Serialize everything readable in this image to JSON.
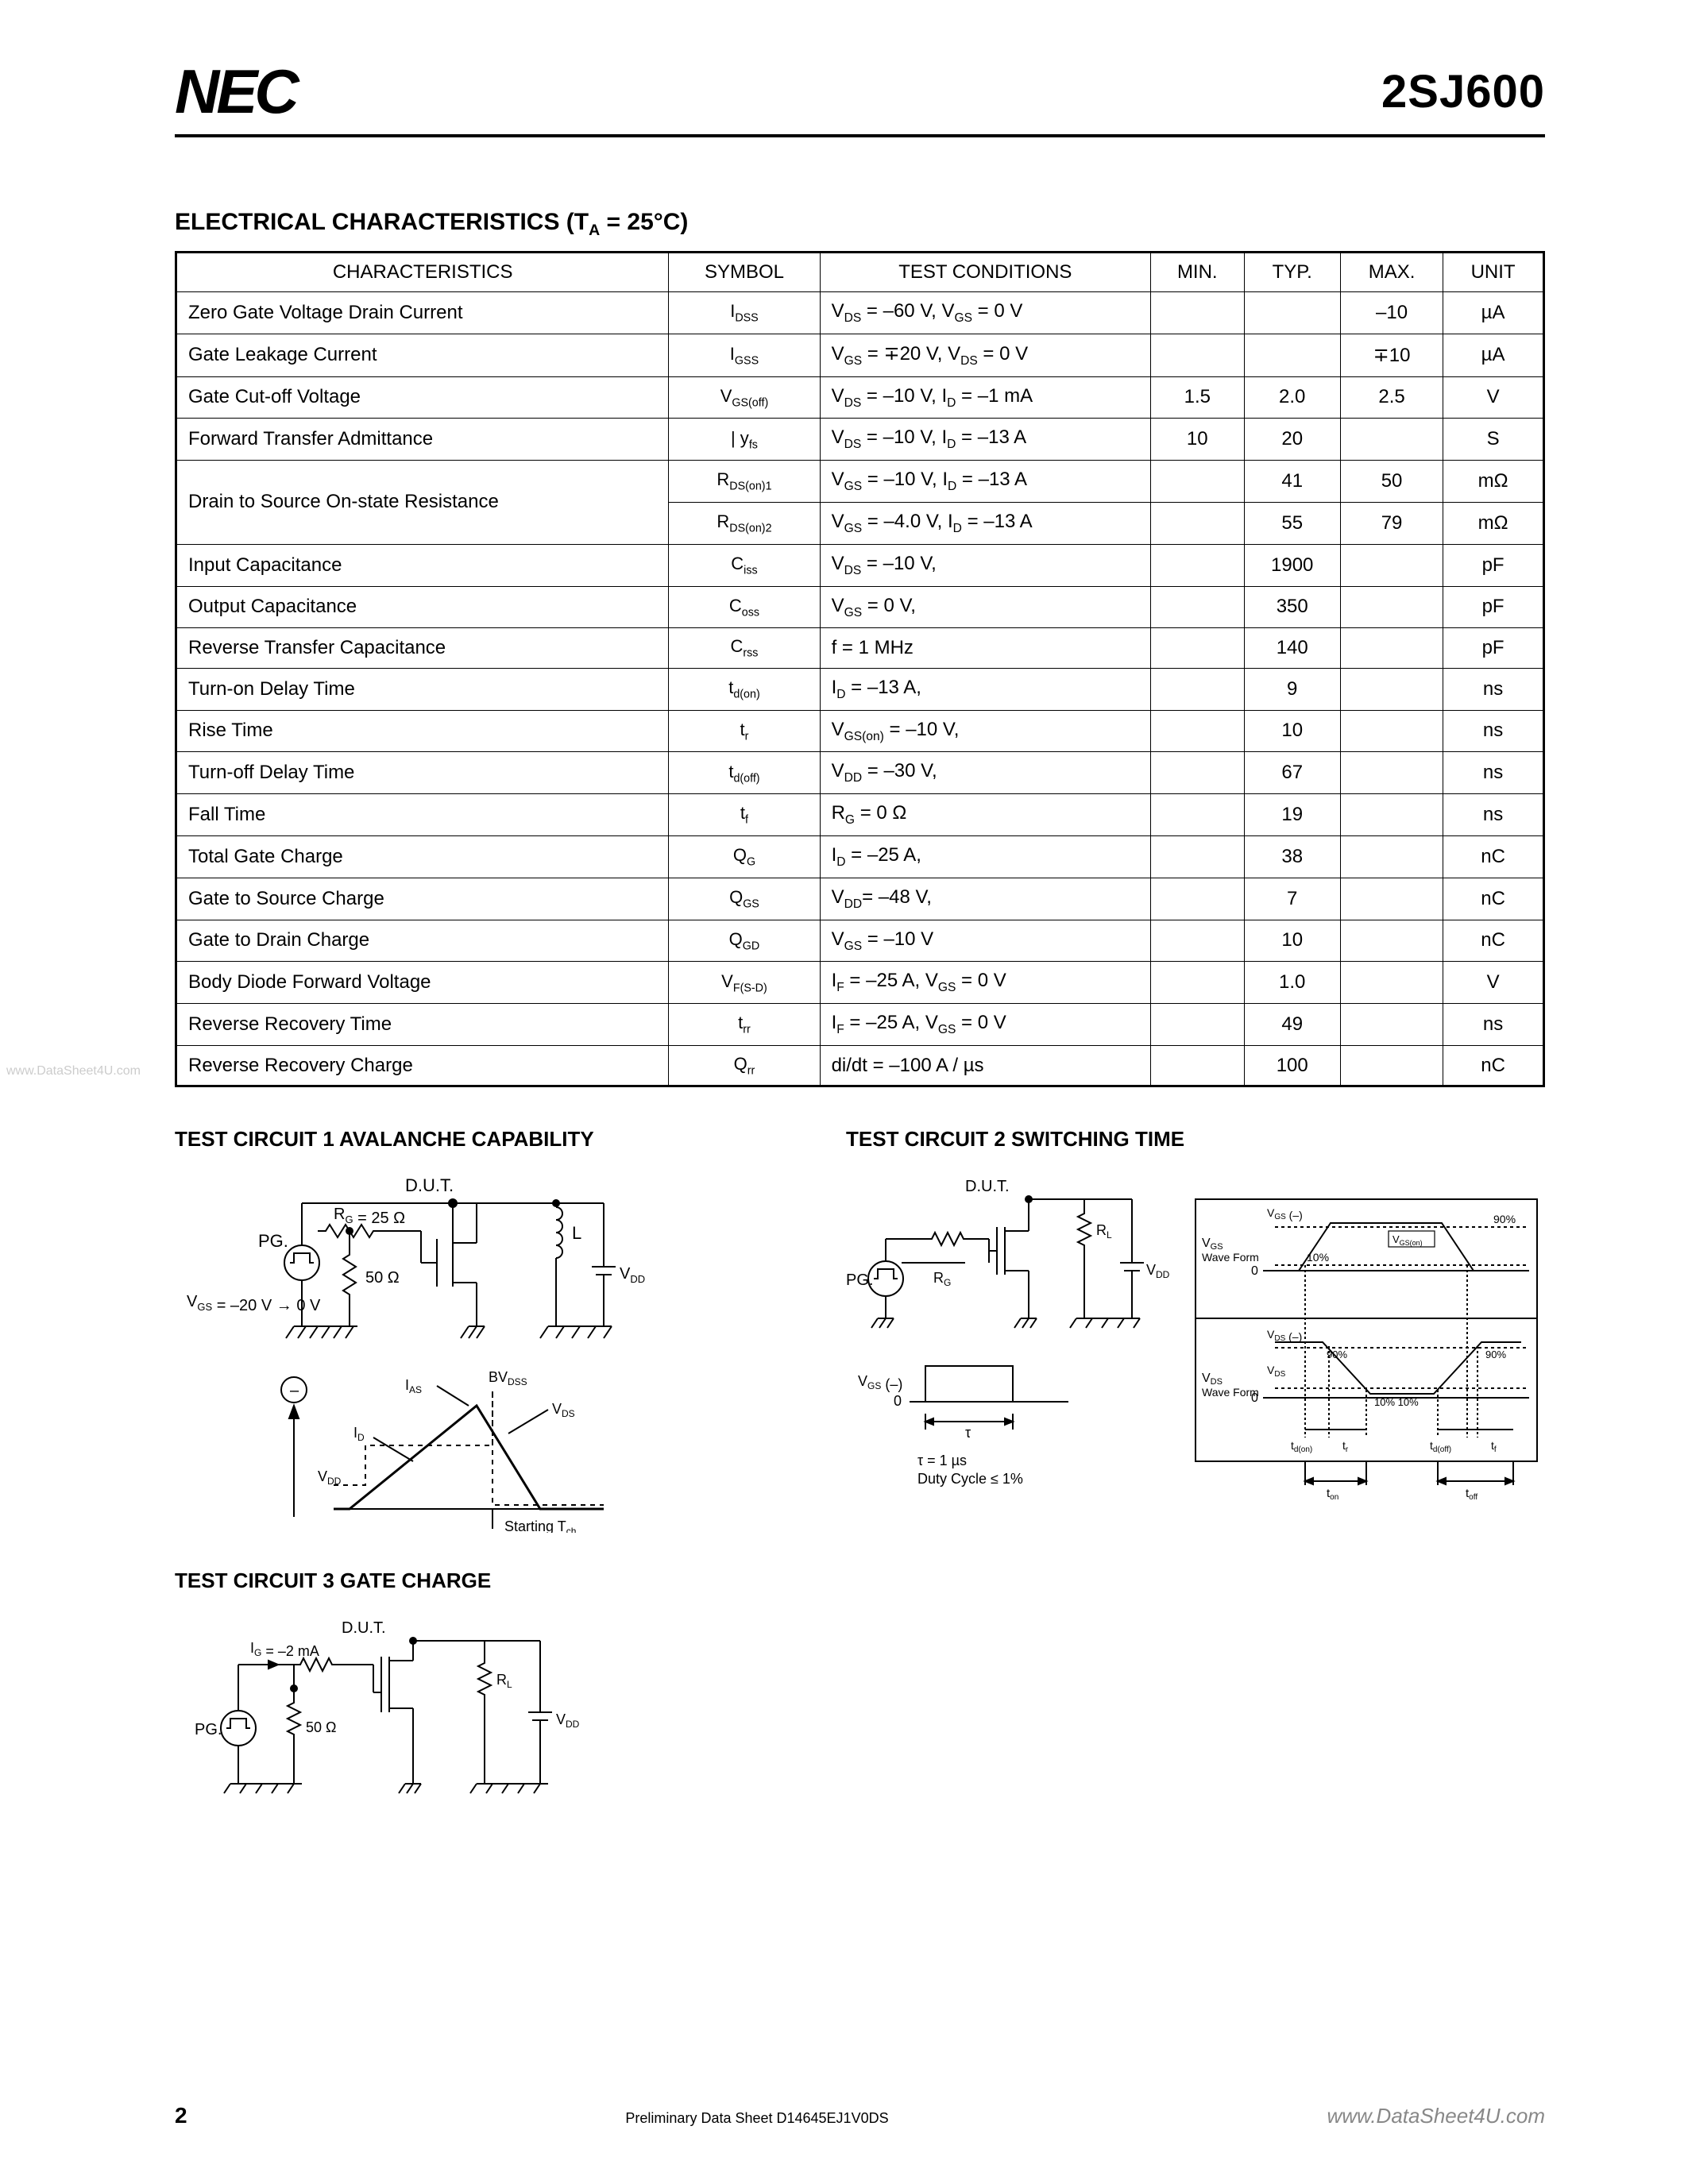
{
  "header": {
    "logo": "NEC",
    "part_number": "2SJ600"
  },
  "section": {
    "title_prefix": "ELECTRICAL CHARACTERISTICS (T",
    "title_sub": "A",
    "title_suffix": " = 25°C)"
  },
  "table": {
    "headers": [
      "CHARACTERISTICS",
      "SYMBOL",
      "TEST CONDITIONS",
      "MIN.",
      "TYP.",
      "MAX.",
      "UNIT"
    ],
    "rows": [
      {
        "char": "Zero Gate Voltage Drain Current",
        "sym": "I",
        "sub": "DSS",
        "cond": "V_DS = –60 V, V_GS = 0 V",
        "min": "",
        "typ": "",
        "max": "–10",
        "unit": "µA"
      },
      {
        "char": "Gate Leakage Current",
        "sym": "I",
        "sub": "GSS",
        "cond": "V_GS = ∓20 V, V_DS = 0 V",
        "min": "",
        "typ": "",
        "max": "∓10",
        "unit": "µA"
      },
      {
        "char": "Gate Cut-off Voltage",
        "sym": "V",
        "sub": "GS(off)",
        "cond": "V_DS = –10 V, I_D = –1 mA",
        "min": "1.5",
        "typ": "2.0",
        "max": "2.5",
        "unit": "V"
      },
      {
        "char": "Forward Transfer Admittance",
        "sym": "| y",
        "sub": "fs",
        " symsuf": " |",
        "cond": "V_DS = –10 V, I_D = –13 A",
        "min": "10",
        "typ": "20",
        "max": "",
        "unit": "S"
      },
      {
        "char": "Drain to Source On-state Resistance",
        "sym": "R",
        "sub": "DS(on)1",
        "cond": "V_GS = –10 V, I_D = –13 A",
        "min": "",
        "typ": "41",
        "max": "50",
        "unit": "mΩ"
      },
      {
        "char": "",
        "sym": "R",
        "sub": "DS(on)2",
        "cond": "V_GS = –4.0 V, I_D = –13 A",
        "min": "",
        "typ": "55",
        "max": "79",
        "unit": "mΩ"
      },
      {
        "char": "Input Capacitance",
        "sym": "C",
        "sub": "iss",
        "cond": "V_DS = –10 V,",
        "min": "",
        "typ": "1900",
        "max": "",
        "unit": "pF"
      },
      {
        "char": "Output Capacitance",
        "sym": "C",
        "sub": "oss",
        "cond": "V_GS = 0 V,",
        "min": "",
        "typ": "350",
        "max": "",
        "unit": "pF"
      },
      {
        "char": "Reverse Transfer Capacitance",
        "sym": "C",
        "sub": "rss",
        "cond": "f = 1 MHz",
        "min": "",
        "typ": "140",
        "max": "",
        "unit": "pF"
      },
      {
        "char": "Turn-on Delay Time",
        "sym": "t",
        "sub": "d(on)",
        "cond": "I_D = –13 A,",
        "min": "",
        "typ": "9",
        "max": "",
        "unit": "ns"
      },
      {
        "char": "Rise Time",
        "sym": "t",
        "sub": "r",
        "cond": "V_GS(on) = –10 V,",
        "min": "",
        "typ": "10",
        "max": "",
        "unit": "ns"
      },
      {
        "char": "Turn-off Delay Time",
        "sym": "t",
        "sub": "d(off)",
        "cond": "V_DD = –30 V,",
        "min": "",
        "typ": "67",
        "max": "",
        "unit": "ns"
      },
      {
        "char": "Fall Time",
        "sym": "t",
        "sub": "f",
        "cond": "R_G = 0 Ω",
        "min": "",
        "typ": "19",
        "max": "",
        "unit": "ns"
      },
      {
        "char": "Total Gate Charge",
        "sym": "Q",
        "sub": "G",
        "cond": "I_D = –25 A,",
        "min": "",
        "typ": "38",
        "max": "",
        "unit": "nC"
      },
      {
        "char": "Gate to Source Charge",
        "sym": "Q",
        "sub": "GS",
        "cond": "V_DD= –48 V,",
        "min": "",
        "typ": "7",
        "max": "",
        "unit": "nC"
      },
      {
        "char": "Gate to Drain Charge",
        "sym": "Q",
        "sub": "GD",
        "cond": "V_GS = –10 V",
        "min": "",
        "typ": "10",
        "max": "",
        "unit": "nC"
      },
      {
        "char": "Body Diode Forward Voltage",
        "sym": "V",
        "sub": "F(S-D)",
        "cond": "I_F = –25 A, V_GS = 0 V",
        "min": "",
        "typ": "1.0",
        "max": "",
        "unit": "V"
      },
      {
        "char": "Reverse Recovery Time",
        "sym": "t",
        "sub": "rr",
        "cond": "I_F = –25 A, V_GS = 0 V",
        "min": "",
        "typ": "49",
        "max": "",
        "unit": "ns"
      },
      {
        "char": "Reverse Recovery Charge",
        "sym": "Q",
        "sub": "rr",
        "cond": "di/dt = –100 A / µs",
        "min": "",
        "typ": "100",
        "max": "",
        "unit": "nC"
      }
    ]
  },
  "circuits": {
    "c1": {
      "title": "TEST CIRCUIT 1  AVALANCHE CAPABILITY",
      "labels": {
        "dut": "D.U.T.",
        "rg": "R_G = 25 Ω",
        "pg": "PG.",
        "r50": "50 Ω",
        "vgs": "V_GS = –20 V → 0 V",
        "l": "L",
        "vdd": "V_DD",
        "minus": "–",
        "ias": "I_AS",
        "bvdss": "BV_DSS",
        "vds": "V_DS",
        "id": "I_D",
        "vddw": "V_DD",
        "start": "Starting T_ch"
      }
    },
    "c2": {
      "title": "TEST CIRCUIT 2  SWITCHING TIME",
      "labels": {
        "dut": "D.U.T.",
        "pg": "PG.",
        "rg": "R_G",
        "rl": "R_L",
        "vdd": "V_DD",
        "vgsm": "V_GS (–)",
        "zero": "0",
        "tau": "τ",
        "tauval": "τ = 1 µs",
        "duty": "Duty Cycle ≤ 1%",
        "vgs": "V_GS",
        "wave": "Wave Form",
        "vds": "V_DS",
        "vgsneg": "V_GS (–)",
        "vdsneg": "V_DS (–)",
        "p10": "10%",
        "p90": "90%",
        "vgson": "V_GS(on)",
        "tdon": "t_d(on)",
        "tr": "t_r",
        "tdoff": "t_d(off)",
        "tf": "t_f",
        "ton": "t_on",
        "toff": "t_off"
      }
    },
    "c3": {
      "title": "TEST CIRCUIT 3  GATE CHARGE",
      "labels": {
        "dut": "D.U.T.",
        "ig": "I_G = –2 mA",
        "pg": "PG.",
        "r50": "50 Ω",
        "rl": "R_L",
        "vdd": "V_DD"
      }
    }
  },
  "footer": {
    "page": "2",
    "docid": "Preliminary Data Sheet  D14645EJ1V0DS",
    "wm": "www.DataSheet4U.com"
  },
  "watermark_left": "www.DataSheet4U.com"
}
